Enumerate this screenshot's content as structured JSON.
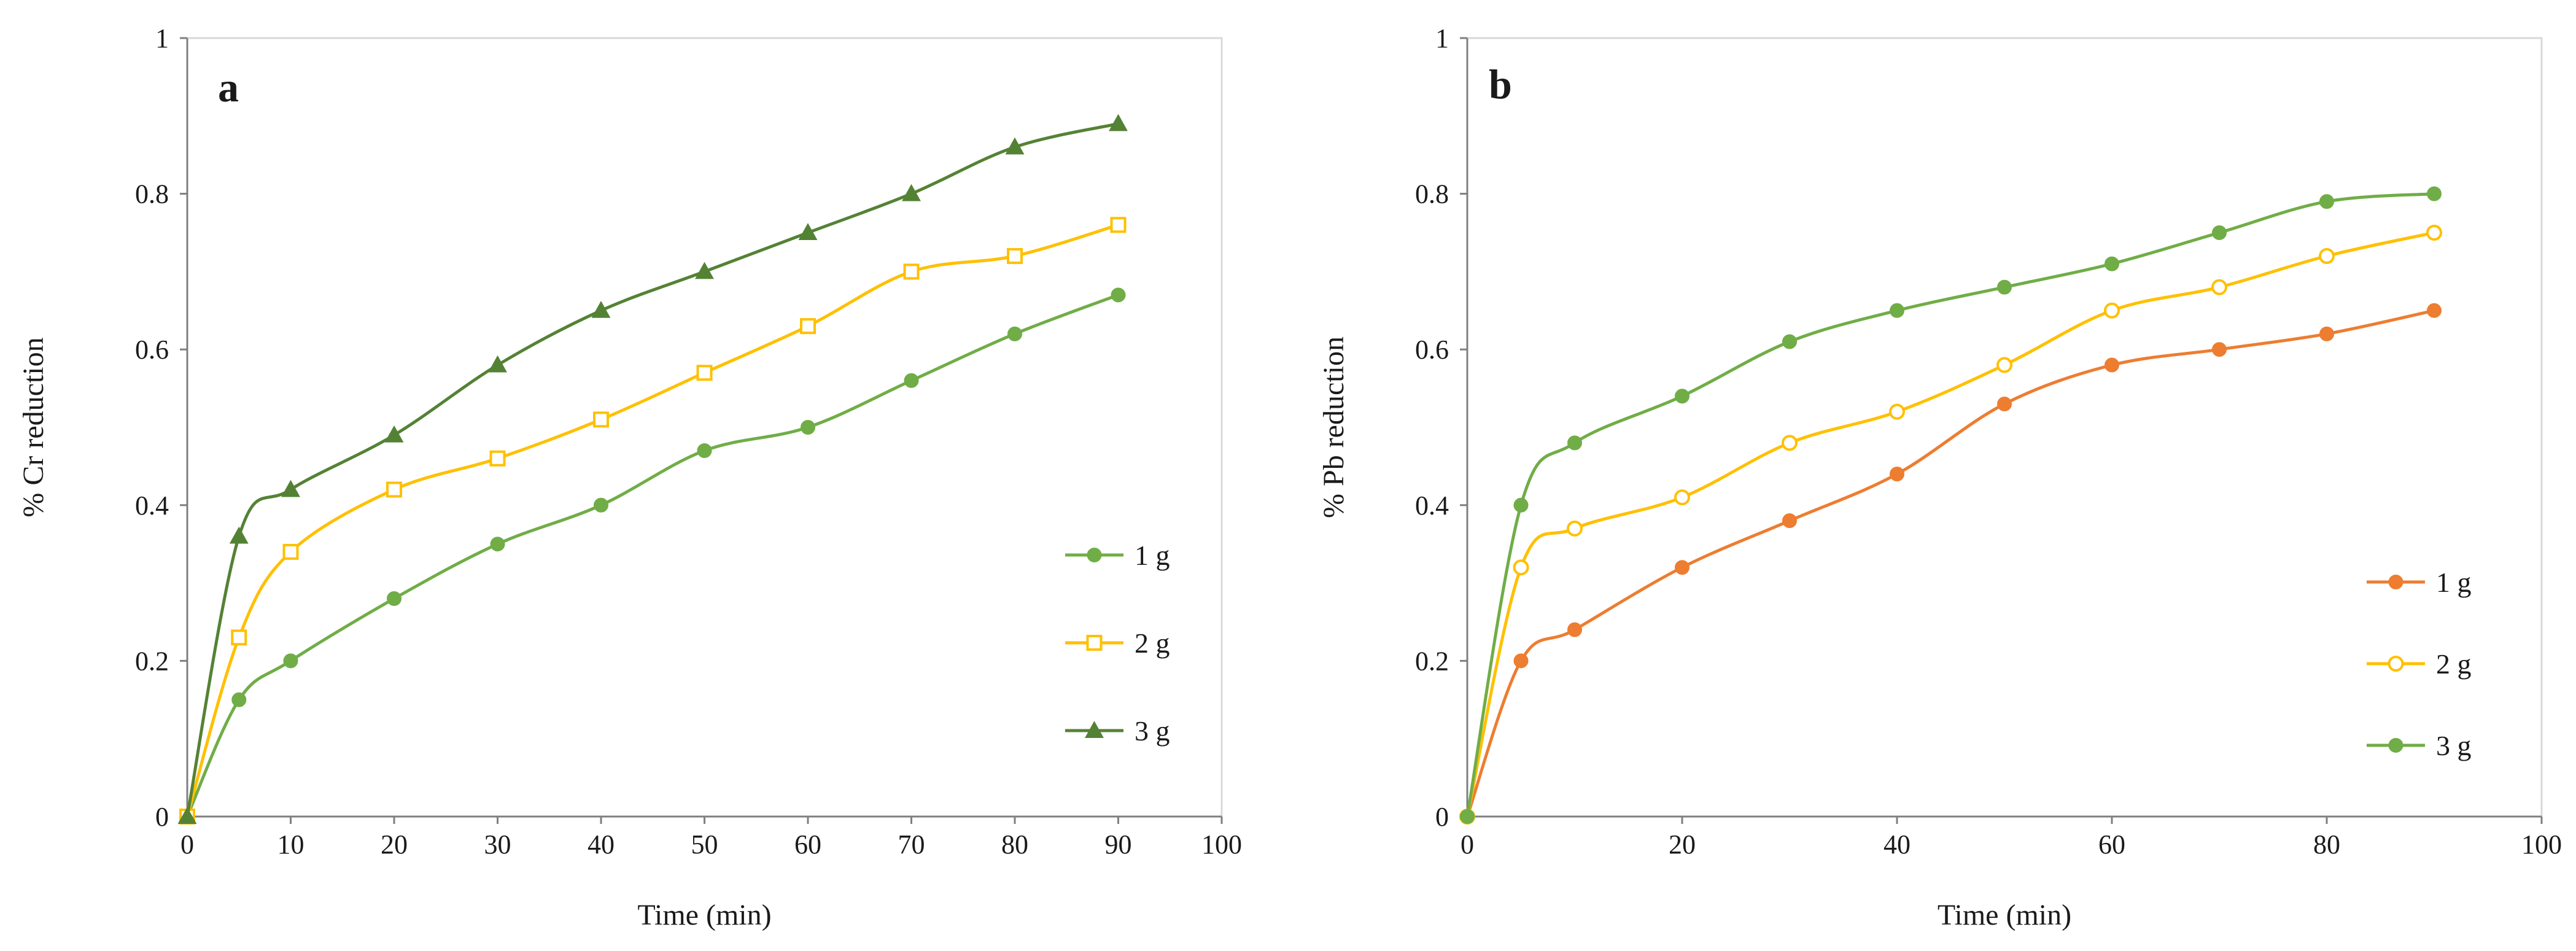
{
  "chart_data": [
    {
      "type": "line",
      "panel_label": "a",
      "xlabel": "Time (min)",
      "ylabel": "% Cr reduction",
      "xlim": [
        0,
        100
      ],
      "ylim": [
        0,
        1
      ],
      "xticks": [
        0,
        10,
        20,
        30,
        40,
        50,
        60,
        70,
        80,
        90,
        100
      ],
      "yticks": [
        0,
        0.2,
        0.4,
        0.6,
        0.8,
        1
      ],
      "grid": false,
      "legend_position": "right",
      "x": [
        0,
        5,
        10,
        20,
        30,
        40,
        50,
        60,
        70,
        80,
        90
      ],
      "series": [
        {
          "name": "1 g",
          "color": "#70ad47",
          "marker": "circle",
          "values": [
            0,
            0.15,
            0.2,
            0.28,
            0.35,
            0.4,
            0.47,
            0.5,
            0.56,
            0.62,
            0.67
          ]
        },
        {
          "name": "2 g",
          "color": "#ffc000",
          "marker": "open-square",
          "values": [
            0,
            0.23,
            0.34,
            0.42,
            0.46,
            0.51,
            0.57,
            0.63,
            0.7,
            0.72,
            0.76
          ]
        },
        {
          "name": "3 g",
          "color": "#548235",
          "marker": "triangle",
          "values": [
            0,
            0.36,
            0.42,
            0.49,
            0.58,
            0.65,
            0.7,
            0.75,
            0.8,
            0.86,
            0.89
          ]
        }
      ]
    },
    {
      "type": "line",
      "panel_label": "b",
      "xlabel": "Time (min)",
      "ylabel": "% Pb reduction",
      "xlim": [
        0,
        100
      ],
      "ylim": [
        0,
        1
      ],
      "xticks": [
        0,
        20,
        40,
        60,
        80,
        100
      ],
      "yticks": [
        0,
        0.2,
        0.4,
        0.6,
        0.8,
        1
      ],
      "grid": false,
      "legend_position": "right",
      "x": [
        0,
        5,
        10,
        20,
        30,
        40,
        50,
        60,
        70,
        80,
        90
      ],
      "series": [
        {
          "name": "1 g",
          "color": "#ed7d31",
          "marker": "circle",
          "values": [
            0,
            0.2,
            0.24,
            0.32,
            0.38,
            0.44,
            0.53,
            0.58,
            0.6,
            0.62,
            0.65
          ]
        },
        {
          "name": "2 g",
          "color": "#ffc000",
          "marker": "open-circle",
          "values": [
            0,
            0.32,
            0.37,
            0.41,
            0.48,
            0.52,
            0.58,
            0.65,
            0.68,
            0.72,
            0.75
          ]
        },
        {
          "name": "3 g",
          "color": "#70ad47",
          "marker": "circle",
          "values": [
            0,
            0.4,
            0.48,
            0.54,
            0.61,
            0.65,
            0.68,
            0.71,
            0.75,
            0.79,
            0.8
          ]
        }
      ]
    }
  ]
}
